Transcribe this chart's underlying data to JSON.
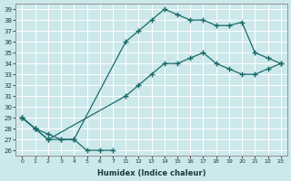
{
  "xlabel": "Humidex (Indice chaleur)",
  "bg_color": "#cce8eb",
  "grid_color": "#ffffff",
  "line_color": "#1a6b6b",
  "ylim": [
    25.5,
    39.5
  ],
  "yticks": [
    26,
    27,
    28,
    29,
    30,
    31,
    32,
    33,
    34,
    35,
    36,
    37,
    38,
    39
  ],
  "x_labels": [
    "0",
    "1",
    "2",
    "3",
    "4",
    "5",
    "6",
    "7",
    "11",
    "12",
    "13",
    "14",
    "15",
    "16",
    "17",
    "18",
    "19",
    "20",
    "21",
    "22",
    "23"
  ],
  "curve1_xi": [
    0,
    1,
    2,
    3,
    4,
    5,
    6,
    7
  ],
  "curve1_y": [
    29,
    28,
    27,
    27,
    27,
    26,
    26,
    26
  ],
  "curve2_xi": [
    0,
    1,
    2,
    3,
    4,
    8,
    9,
    10,
    11,
    12,
    13,
    14,
    15,
    16,
    17,
    18,
    19,
    20
  ],
  "curve2_y": [
    29,
    28,
    27.5,
    27,
    27,
    36,
    37,
    38,
    39,
    38.5,
    38,
    38,
    37.5,
    37.5,
    37.8,
    35,
    34.5,
    34
  ],
  "curve3_xi": [
    0,
    1,
    2,
    8,
    9,
    10,
    11,
    12,
    13,
    14,
    15,
    16,
    17,
    18,
    19,
    20
  ],
  "curve3_y": [
    29,
    28,
    27,
    31,
    32,
    33,
    34,
    34,
    34.5,
    35,
    34,
    33.5,
    33,
    33,
    33.5,
    34
  ]
}
